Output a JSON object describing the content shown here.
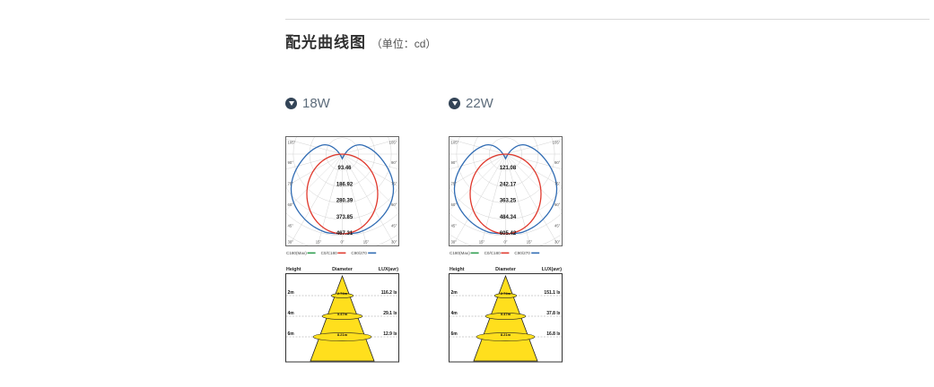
{
  "page": {
    "title": "配光曲线图",
    "unit_label": "（单位：cd）"
  },
  "sections": [
    {
      "label": "18W"
    },
    {
      "label": "22W"
    }
  ],
  "chart_data": [
    {
      "type": "line",
      "variant": "polar_photometric",
      "title": "18W",
      "unit": "cd",
      "radial_tick_values": [
        93.46,
        186.92,
        280.39,
        373.85,
        467.31
      ],
      "side_angle_labels": [
        "105°",
        "90°",
        "75°",
        "60°",
        "45°"
      ],
      "bottom_angle_labels": [
        "30°",
        "15°",
        "0°",
        "15°",
        "30°"
      ],
      "legend_position": "bottom",
      "grid": true,
      "series": [
        {
          "name": "C180(Max)",
          "color": "#2e9e4f"
        },
        {
          "name": "C0/C180",
          "color": "#e03a2e"
        },
        {
          "name": "C90/270",
          "color": "#2f6bb3"
        }
      ]
    },
    {
      "type": "table",
      "variant": "cone_illuminance",
      "title": "18W",
      "columns": [
        "Height",
        "Diameter",
        "LUX(avr)"
      ],
      "rows": [
        [
          "2m",
          "2.74m",
          "116.2 lx"
        ],
        [
          "4m",
          "5.47m",
          "29.1 lx"
        ],
        [
          "6m",
          "8.21m",
          "12.9 lx"
        ]
      ],
      "cone_color": "#ffdf1d"
    },
    {
      "type": "line",
      "variant": "polar_photometric",
      "title": "22W",
      "unit": "cd",
      "radial_tick_values": [
        121.08,
        242.17,
        363.25,
        484.34,
        605.42
      ],
      "side_angle_labels": [
        "105°",
        "90°",
        "75°",
        "60°",
        "45°"
      ],
      "bottom_angle_labels": [
        "30°",
        "15°",
        "0°",
        "15°",
        "30°"
      ],
      "legend_position": "bottom",
      "grid": true,
      "series": [
        {
          "name": "C180(Max)",
          "color": "#2e9e4f"
        },
        {
          "name": "C0/C180",
          "color": "#e03a2e"
        },
        {
          "name": "C90/270",
          "color": "#2f6bb3"
        }
      ]
    },
    {
      "type": "table",
      "variant": "cone_illuminance",
      "title": "22W",
      "columns": [
        "Height",
        "Diameter",
        "LUX(avr)"
      ],
      "rows": [
        [
          "2m",
          "2.74m",
          "151.1 lx"
        ],
        [
          "4m",
          "5.47m",
          "37.8 lx"
        ],
        [
          "6m",
          "8.21m",
          "16.8 lx"
        ]
      ],
      "cone_color": "#ffdf1d"
    }
  ]
}
